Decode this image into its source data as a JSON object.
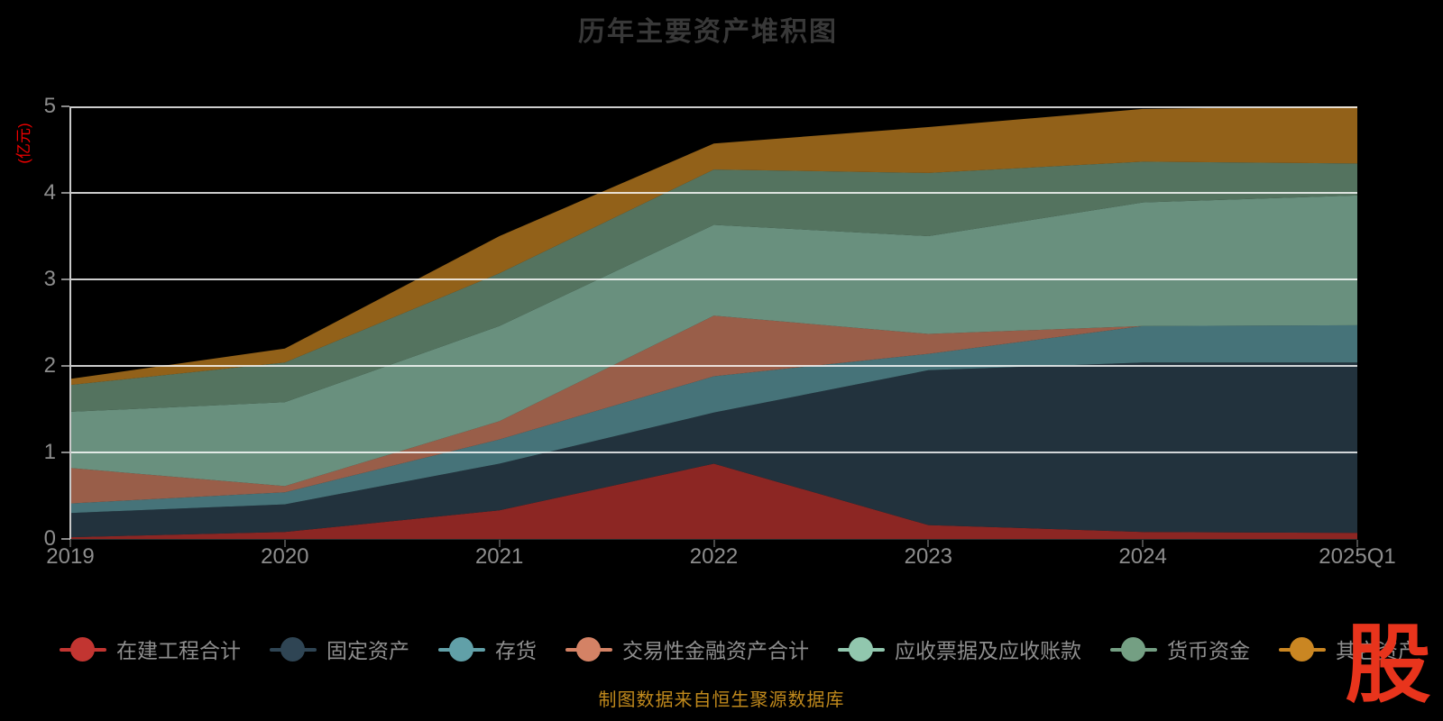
{
  "title": "历年主要资产堆积图",
  "caption": "制图数据来自恒生聚源数据库",
  "logo": {
    "text": "股",
    "color": "#e8341c"
  },
  "y_axis": {
    "name": "(亿元)",
    "name_color": "#ee0000",
    "tick_labels": [
      "0",
      "1",
      "2",
      "3",
      "4",
      "5"
    ]
  },
  "x_axis": {
    "tick_labels": [
      "2019",
      "2020",
      "2021",
      "2022",
      "2023",
      "2024",
      "2025Q1"
    ]
  },
  "chart_data": {
    "type": "area",
    "stacked": true,
    "title": "历年主要资产堆积图",
    "ylabel": "(亿元)",
    "ylim": [
      0,
      5
    ],
    "grid": true,
    "background": "#000000",
    "gridline_color": "rgba(255,255,255,0.8)",
    "area_opacity": 0.72,
    "legend_position": "bottom",
    "categories": [
      "2019",
      "2020",
      "2021",
      "2022",
      "2023",
      "2024",
      "2025Q1"
    ],
    "series": [
      {
        "name": "在建工程合计",
        "color": "#c23531",
        "values": [
          0.02,
          0.08,
          0.33,
          0.87,
          0.16,
          0.08,
          0.07
        ]
      },
      {
        "name": "固定资产",
        "color": "#2f4554",
        "values": [
          0.28,
          0.32,
          0.54,
          0.59,
          1.79,
          1.96,
          1.97
        ]
      },
      {
        "name": "存货",
        "color": "#61a0a8",
        "values": [
          0.11,
          0.14,
          0.28,
          0.42,
          0.19,
          0.42,
          0.43
        ]
      },
      {
        "name": "交易性金融资产合计",
        "color": "#d48265",
        "values": [
          0.41,
          0.07,
          0.21,
          0.7,
          0.23,
          0.0,
          0.0
        ]
      },
      {
        "name": "应收票据及应收账款",
        "color": "#91c7ae",
        "values": [
          0.65,
          0.97,
          1.1,
          1.05,
          1.13,
          1.43,
          1.5
        ]
      },
      {
        "name": "货币资金",
        "color": "#749f83",
        "values": [
          0.31,
          0.46,
          0.61,
          0.64,
          0.73,
          0.47,
          0.37
        ]
      },
      {
        "name": "其它资产",
        "color": "#ca8622",
        "values": [
          0.07,
          0.16,
          0.43,
          0.3,
          0.53,
          0.61,
          0.66
        ]
      }
    ]
  }
}
